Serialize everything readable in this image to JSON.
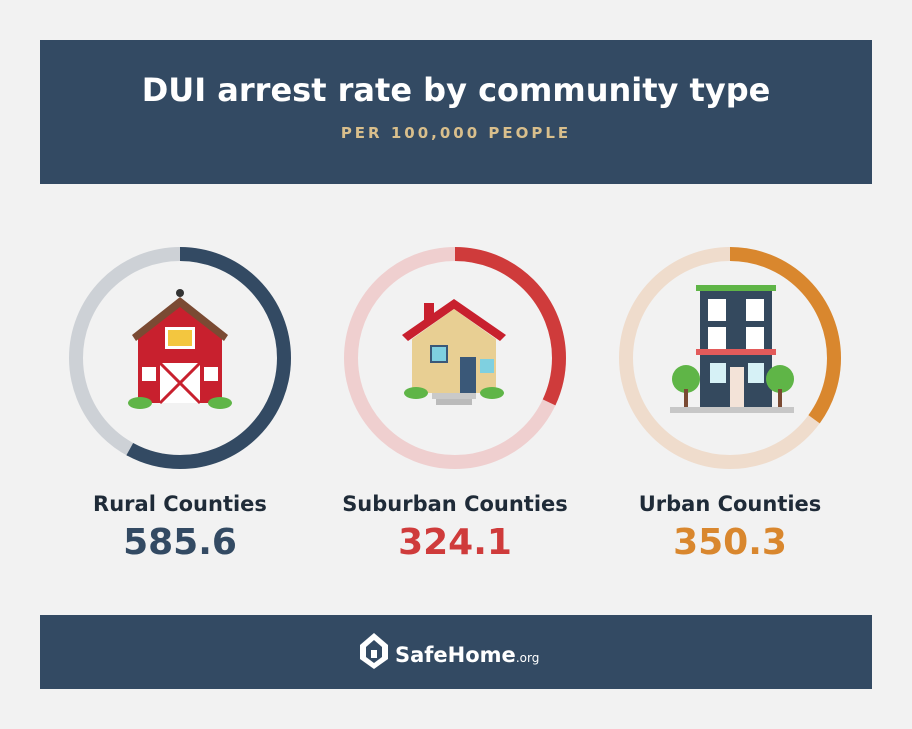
{
  "header": {
    "title": "DUI arrest rate by community type",
    "subtitle": "PER 100,000 PEOPLE"
  },
  "chart_data": {
    "type": "donut",
    "title": "DUI arrest rate by community type",
    "subtitle": "PER 100,000 PEOPLE",
    "categories": [
      "Rural Counties",
      "Suburban Counties",
      "Urban Counties"
    ],
    "values": [
      585.6,
      324.1,
      350.3
    ],
    "fill_fractions": [
      0.58,
      0.32,
      0.35
    ],
    "colors": [
      "#334a63",
      "#cf3b3b",
      "#d9872e"
    ],
    "track_colors": [
      "#cdd1d6",
      "#efcfcf",
      "#efdccc"
    ],
    "icons": [
      "barn-icon",
      "house-icon",
      "apartment-building-icon"
    ]
  },
  "footer": {
    "brand": "SafeHome",
    "brand_suffix": ".org"
  }
}
